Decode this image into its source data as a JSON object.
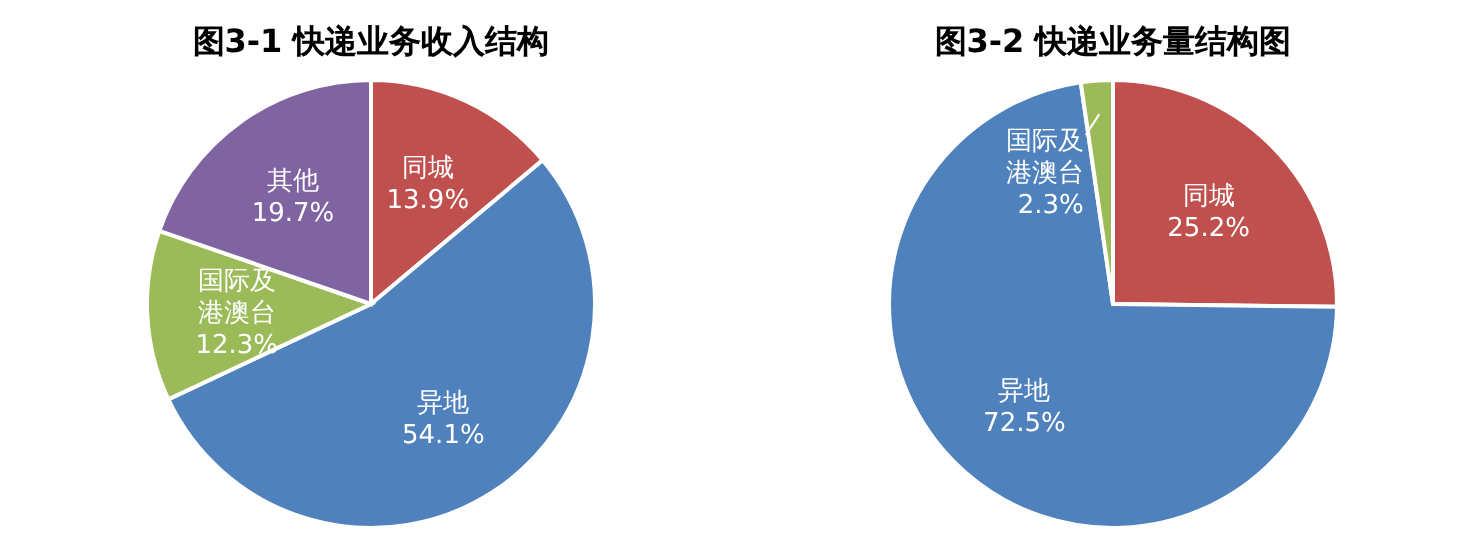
{
  "chart_data": [
    {
      "type": "pie",
      "title": "图3-1  快递业务收入结构",
      "categories": [
        "同城",
        "异地",
        "国际及港澳台",
        "其他"
      ],
      "values": [
        13.9,
        54.1,
        12.3,
        19.7
      ],
      "value_labels": [
        "13.9%",
        "54.1%",
        "12.3%",
        "19.7%"
      ],
      "colors": [
        "#c0504d",
        "#4f81bd",
        "#9bbb59",
        "#8064a2"
      ],
      "legend": false
    },
    {
      "type": "pie",
      "title": "图3-2  快递业务量结构图",
      "categories": [
        "同城",
        "异地",
        "国际及港澳台"
      ],
      "values": [
        25.2,
        72.5,
        2.3
      ],
      "value_labels": [
        "25.2%",
        "72.5%",
        "2.3%"
      ],
      "colors": [
        "#c0504d",
        "#4f81bd",
        "#9bbb59"
      ],
      "legend": false
    }
  ]
}
